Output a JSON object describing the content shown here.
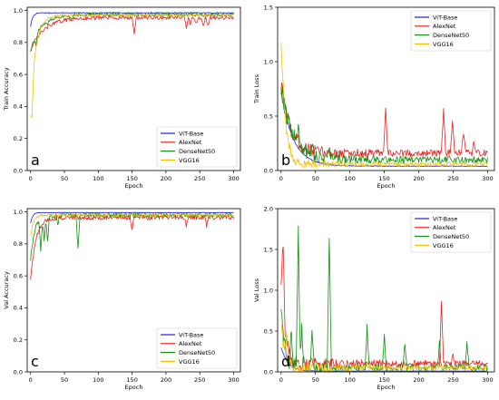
{
  "colors": {
    "ViT-Base": "#1f1fe8",
    "AlexNet": "#f02020",
    "DenseNet50": "#109010",
    "VGG16": "#f5c000"
  },
  "chart_data": [
    {
      "type": "line",
      "panel_label": "a",
      "metric": "acc",
      "xlabel": "Epoch",
      "ylabel": "Train Accuracy",
      "xlim": [
        -5,
        310
      ],
      "ylim": [
        0.0,
        1.02
      ],
      "xticks": [
        "0",
        "50",
        "100",
        "150",
        "200",
        "250",
        "300"
      ],
      "yticks": [
        "0.0",
        "0.2",
        "0.4",
        "0.6",
        "0.8",
        "1.0"
      ],
      "legend": "lower-right",
      "series": [
        {
          "name": "ViT-Base",
          "start": 0.9,
          "end": 0.985,
          "tau": 3,
          "noise": 0.003,
          "spikes": []
        },
        {
          "name": "AlexNet",
          "start": 0.75,
          "end": 0.955,
          "tau": 20,
          "noise": 0.012,
          "spikes": [
            [
              153,
              -0.1
            ],
            [
              230,
              -0.06
            ],
            [
              236,
              -0.05
            ],
            [
              245,
              -0.04
            ],
            [
              255,
              -0.06
            ],
            [
              262,
              -0.05
            ]
          ]
        },
        {
          "name": "DenseNet50",
          "start": 0.75,
          "end": 0.975,
          "tau": 15,
          "noise": 0.012,
          "spikes": [
            [
              8,
              -0.06
            ],
            [
              25,
              -0.03
            ],
            [
              60,
              -0.03
            ]
          ]
        },
        {
          "name": "VGG16",
          "start": 0.41,
          "end": 0.97,
          "tau": 8,
          "noise": 0.008,
          "spikes": [
            [
              2,
              -0.2
            ]
          ]
        }
      ]
    },
    {
      "type": "line",
      "panel_label": "b",
      "metric": "loss",
      "xlabel": "Epoch",
      "ylabel": "Train Loss",
      "xlim": [
        -5,
        310
      ],
      "ylim": [
        0.0,
        1.5
      ],
      "xticks": [
        "0",
        "50",
        "100",
        "150",
        "200",
        "250",
        "300"
      ],
      "yticks": [
        "0.0",
        "0.5",
        "1.0",
        "1.5"
      ],
      "legend": "top-right",
      "series": [
        {
          "name": "ViT-Base",
          "start": 0.72,
          "end": 0.04,
          "tau": 18,
          "noise": 0.003,
          "spikes": []
        },
        {
          "name": "AlexNet",
          "start": 0.78,
          "end": 0.16,
          "tau": 14,
          "noise": 0.03,
          "spikes": [
            [
              152,
              0.4
            ],
            [
              236,
              0.42
            ],
            [
              249,
              0.3
            ],
            [
              265,
              0.18
            ],
            [
              280,
              0.12
            ]
          ]
        },
        {
          "name": "DenseNet50",
          "start": 0.8,
          "end": 0.1,
          "tau": 16,
          "noise": 0.03,
          "spikes": [
            [
              25,
              0.15
            ],
            [
              45,
              0.12
            ],
            [
              70,
              0.1
            ]
          ]
        },
        {
          "name": "VGG16",
          "start": 1.2,
          "end": 0.06,
          "tau": 6,
          "noise": 0.02,
          "spikes": []
        }
      ]
    },
    {
      "type": "line",
      "panel_label": "c",
      "metric": "acc",
      "xlabel": "Epoch",
      "ylabel": "Val Accuracy",
      "xlim": [
        -5,
        310
      ],
      "ylim": [
        0.0,
        1.02
      ],
      "xticks": [
        "0",
        "50",
        "100",
        "150",
        "200",
        "250",
        "300"
      ],
      "yticks": [
        "0.0",
        "0.2",
        "0.4",
        "0.6",
        "0.8",
        "1.0"
      ],
      "legend": "lower-right",
      "series": [
        {
          "name": "ViT-Base",
          "start": 0.93,
          "end": 0.995,
          "tau": 3,
          "noise": 0.002,
          "spikes": []
        },
        {
          "name": "AlexNet",
          "start": 0.58,
          "end": 0.965,
          "tau": 8,
          "noise": 0.015,
          "spikes": [
            [
              150,
              -0.08
            ],
            [
              230,
              -0.05
            ],
            [
              260,
              -0.05
            ]
          ]
        },
        {
          "name": "DenseNet50",
          "start": 0.7,
          "end": 0.98,
          "tau": 6,
          "noise": 0.015,
          "spikes": [
            [
              15,
              -0.2
            ],
            [
              20,
              -0.15
            ],
            [
              25,
              -0.16
            ],
            [
              70,
              -0.22
            ],
            [
              40,
              -0.06
            ]
          ]
        },
        {
          "name": "VGG16",
          "start": 0.85,
          "end": 0.98,
          "tau": 4,
          "noise": 0.01,
          "spikes": []
        }
      ]
    },
    {
      "type": "line",
      "panel_label": "d",
      "metric": "loss",
      "xlabel": "Epoch",
      "ylabel": "Val Loss",
      "xlim": [
        -5,
        310
      ],
      "ylim": [
        0.0,
        2.0
      ],
      "xticks": [
        "0",
        "50",
        "100",
        "150",
        "200",
        "250",
        "300"
      ],
      "yticks": [
        "0.0",
        "0.5",
        "1.0",
        "1.5",
        "2.0"
      ],
      "legend": "top-right",
      "series": [
        {
          "name": "ViT-Base",
          "start": 0.3,
          "end": 0.01,
          "tau": 10,
          "noise": 0.002,
          "spikes": []
        },
        {
          "name": "AlexNet",
          "start": 1.1,
          "end": 0.1,
          "tau": 6,
          "noise": 0.04,
          "spikes": [
            [
              3,
              0.9
            ],
            [
              233,
              0.75
            ],
            [
              250,
              0.1
            ]
          ]
        },
        {
          "name": "DenseNet50",
          "start": 0.8,
          "end": 0.05,
          "tau": 5,
          "noise": 0.04,
          "spikes": [
            [
              15,
              0.4
            ],
            [
              25,
              1.75
            ],
            [
              30,
              0.5
            ],
            [
              45,
              0.4
            ],
            [
              70,
              1.6
            ],
            [
              125,
              0.5
            ],
            [
              150,
              0.4
            ],
            [
              180,
              0.3
            ],
            [
              230,
              0.3
            ],
            [
              270,
              0.3
            ]
          ]
        },
        {
          "name": "VGG16",
          "start": 0.6,
          "end": 0.05,
          "tau": 5,
          "noise": 0.03,
          "spikes": [
            [
              8,
              0.25
            ]
          ]
        }
      ]
    }
  ]
}
